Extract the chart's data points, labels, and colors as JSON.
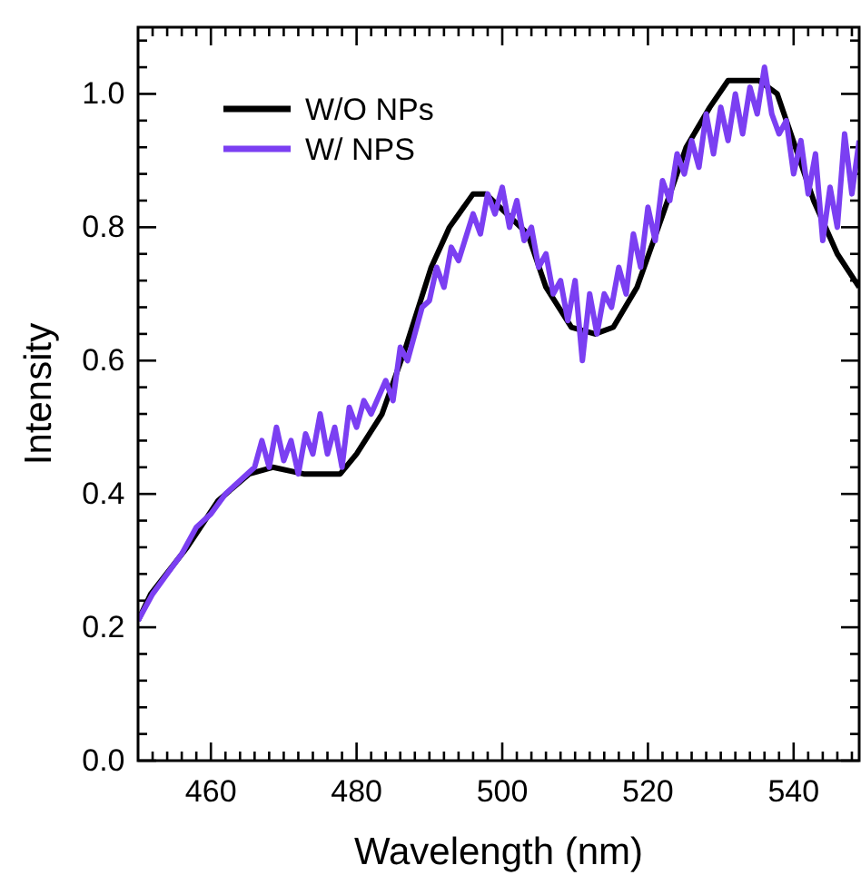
{
  "chart_data": {
    "type": "line",
    "xlabel": "Wavelength (nm)",
    "ylabel": "Intensity",
    "xlim": [
      450,
      549
    ],
    "ylim": [
      0,
      1.1
    ],
    "xticks": [
      {
        "value": 452,
        "label": null
      },
      {
        "value": 454,
        "label": null
      },
      {
        "value": 456,
        "label": null
      },
      {
        "value": 458,
        "label": null
      },
      460,
      {
        "value": 462,
        "label": null
      },
      {
        "value": 464,
        "label": null
      },
      {
        "value": 466,
        "label": null
      },
      {
        "value": 468,
        "label": null
      },
      {
        "value": 470,
        "label": null
      },
      {
        "value": 472,
        "label": null
      },
      {
        "value": 474,
        "label": null
      },
      {
        "value": 476,
        "label": null
      },
      {
        "value": 478,
        "label": null
      },
      480,
      {
        "value": 482,
        "label": null
      },
      {
        "value": 484,
        "label": null
      },
      {
        "value": 486,
        "label": null
      },
      {
        "value": 488,
        "label": null
      },
      {
        "value": 490,
        "label": null
      },
      {
        "value": 492,
        "label": null
      },
      {
        "value": 494,
        "label": null
      },
      {
        "value": 496,
        "label": null
      },
      {
        "value": 498,
        "label": null
      },
      500,
      {
        "value": 502,
        "label": null
      },
      {
        "value": 504,
        "label": null
      },
      {
        "value": 506,
        "label": null
      },
      {
        "value": 508,
        "label": null
      },
      {
        "value": 510,
        "label": null
      },
      {
        "value": 512,
        "label": null
      },
      {
        "value": 514,
        "label": null
      },
      {
        "value": 516,
        "label": null
      },
      {
        "value": 518,
        "label": null
      },
      520,
      {
        "value": 522,
        "label": null
      },
      {
        "value": 524,
        "label": null
      },
      {
        "value": 526,
        "label": null
      },
      {
        "value": 528,
        "label": null
      },
      {
        "value": 530,
        "label": null
      },
      {
        "value": 532,
        "label": null
      },
      {
        "value": 534,
        "label": null
      },
      {
        "value": 536,
        "label": null
      },
      {
        "value": 538,
        "label": null
      },
      540,
      {
        "value": 542,
        "label": null
      },
      {
        "value": 544,
        "label": null
      },
      {
        "value": 546,
        "label": null
      },
      {
        "value": 548,
        "label": null
      }
    ],
    "yticks": [
      {
        "value": 0,
        "label": "0.0"
      },
      {
        "value": 0.04,
        "label": null
      },
      {
        "value": 0.08,
        "label": null
      },
      {
        "value": 0.12,
        "label": null
      },
      {
        "value": 0.16,
        "label": null
      },
      {
        "value": 0.2,
        "label": "0.2"
      },
      {
        "value": 0.24,
        "label": null
      },
      {
        "value": 0.28,
        "label": null
      },
      {
        "value": 0.32,
        "label": null
      },
      {
        "value": 0.36,
        "label": null
      },
      {
        "value": 0.4,
        "label": "0.4"
      },
      {
        "value": 0.44,
        "label": null
      },
      {
        "value": 0.48,
        "label": null
      },
      {
        "value": 0.52,
        "label": null
      },
      {
        "value": 0.56,
        "label": null
      },
      {
        "value": 0.6,
        "label": "0.6"
      },
      {
        "value": 0.64,
        "label": null
      },
      {
        "value": 0.68,
        "label": null
      },
      {
        "value": 0.72,
        "label": null
      },
      {
        "value": 0.76,
        "label": null
      },
      {
        "value": 0.8,
        "label": "0.8"
      },
      {
        "value": 0.84,
        "label": null
      },
      {
        "value": 0.88,
        "label": null
      },
      {
        "value": 0.92,
        "label": null
      },
      {
        "value": 0.96,
        "label": null
      },
      {
        "value": 1.0,
        "label": "1.0"
      },
      {
        "value": 1.04,
        "label": null
      },
      {
        "value": 1.08,
        "label": null
      }
    ],
    "grid": false,
    "legend": "top left",
    "marker": "none",
    "line_style": "solid",
    "series": [
      {
        "name": "W/O NPs",
        "color": "#000000",
        "x": [
          450,
          451.75,
          456.75,
          461,
          465.25,
          468.5,
          472.75,
          477.75,
          480,
          483.5,
          486.75,
          490.25,
          492.75,
          496,
          497.75,
          503.5,
          506,
          509.5,
          512.75,
          515.25,
          518.5,
          521.75,
          525.25,
          528.5,
          531,
          535.25,
          537.75,
          540.25,
          542.75,
          546,
          549
        ],
        "values": [
          0.21,
          0.25,
          0.32,
          0.39,
          0.43,
          0.44,
          0.43,
          0.43,
          0.46,
          0.52,
          0.62,
          0.74,
          0.8,
          0.85,
          0.85,
          0.79,
          0.71,
          0.65,
          0.64,
          0.65,
          0.71,
          0.81,
          0.92,
          0.98,
          1.02,
          1.02,
          1.0,
          0.92,
          0.84,
          0.76,
          0.71
        ]
      },
      {
        "name": "W/ NPS",
        "color": "#7b3ff2",
        "x": [
          450,
          452,
          454,
          456,
          458,
          460,
          462,
          464,
          466,
          467,
          468,
          469,
          470,
          471,
          472,
          473,
          474,
          475,
          476,
          477,
          478,
          479,
          480,
          481,
          482,
          484,
          485,
          486,
          487,
          489,
          490,
          491,
          492,
          493,
          494,
          496,
          497,
          498,
          499,
          500,
          501,
          502,
          503,
          504,
          505,
          506,
          507,
          508,
          509,
          510,
          511,
          512,
          513,
          514,
          515,
          516,
          517,
          518,
          519,
          520,
          521,
          522,
          523,
          524,
          525,
          526,
          527,
          528,
          529,
          530,
          531,
          532,
          533,
          534,
          535,
          536,
          537,
          538,
          539,
          540,
          541,
          542,
          543,
          544,
          545,
          546,
          547,
          548,
          549
        ],
        "values": [
          0.21,
          0.25,
          0.28,
          0.31,
          0.35,
          0.37,
          0.4,
          0.42,
          0.44,
          0.48,
          0.44,
          0.5,
          0.45,
          0.48,
          0.43,
          0.49,
          0.46,
          0.52,
          0.46,
          0.5,
          0.44,
          0.53,
          0.5,
          0.54,
          0.52,
          0.57,
          0.54,
          0.62,
          0.6,
          0.68,
          0.69,
          0.74,
          0.71,
          0.77,
          0.75,
          0.82,
          0.79,
          0.85,
          0.82,
          0.86,
          0.8,
          0.84,
          0.78,
          0.8,
          0.74,
          0.76,
          0.7,
          0.72,
          0.66,
          0.72,
          0.6,
          0.7,
          0.64,
          0.7,
          0.68,
          0.74,
          0.7,
          0.79,
          0.74,
          0.83,
          0.78,
          0.87,
          0.84,
          0.91,
          0.88,
          0.93,
          0.89,
          0.97,
          0.91,
          0.98,
          0.93,
          1.0,
          0.94,
          1.01,
          0.97,
          1.04,
          0.97,
          0.94,
          0.96,
          0.88,
          0.93,
          0.85,
          0.91,
          0.78,
          0.86,
          0.8,
          0.94,
          0.85,
          0.93
        ]
      }
    ]
  }
}
